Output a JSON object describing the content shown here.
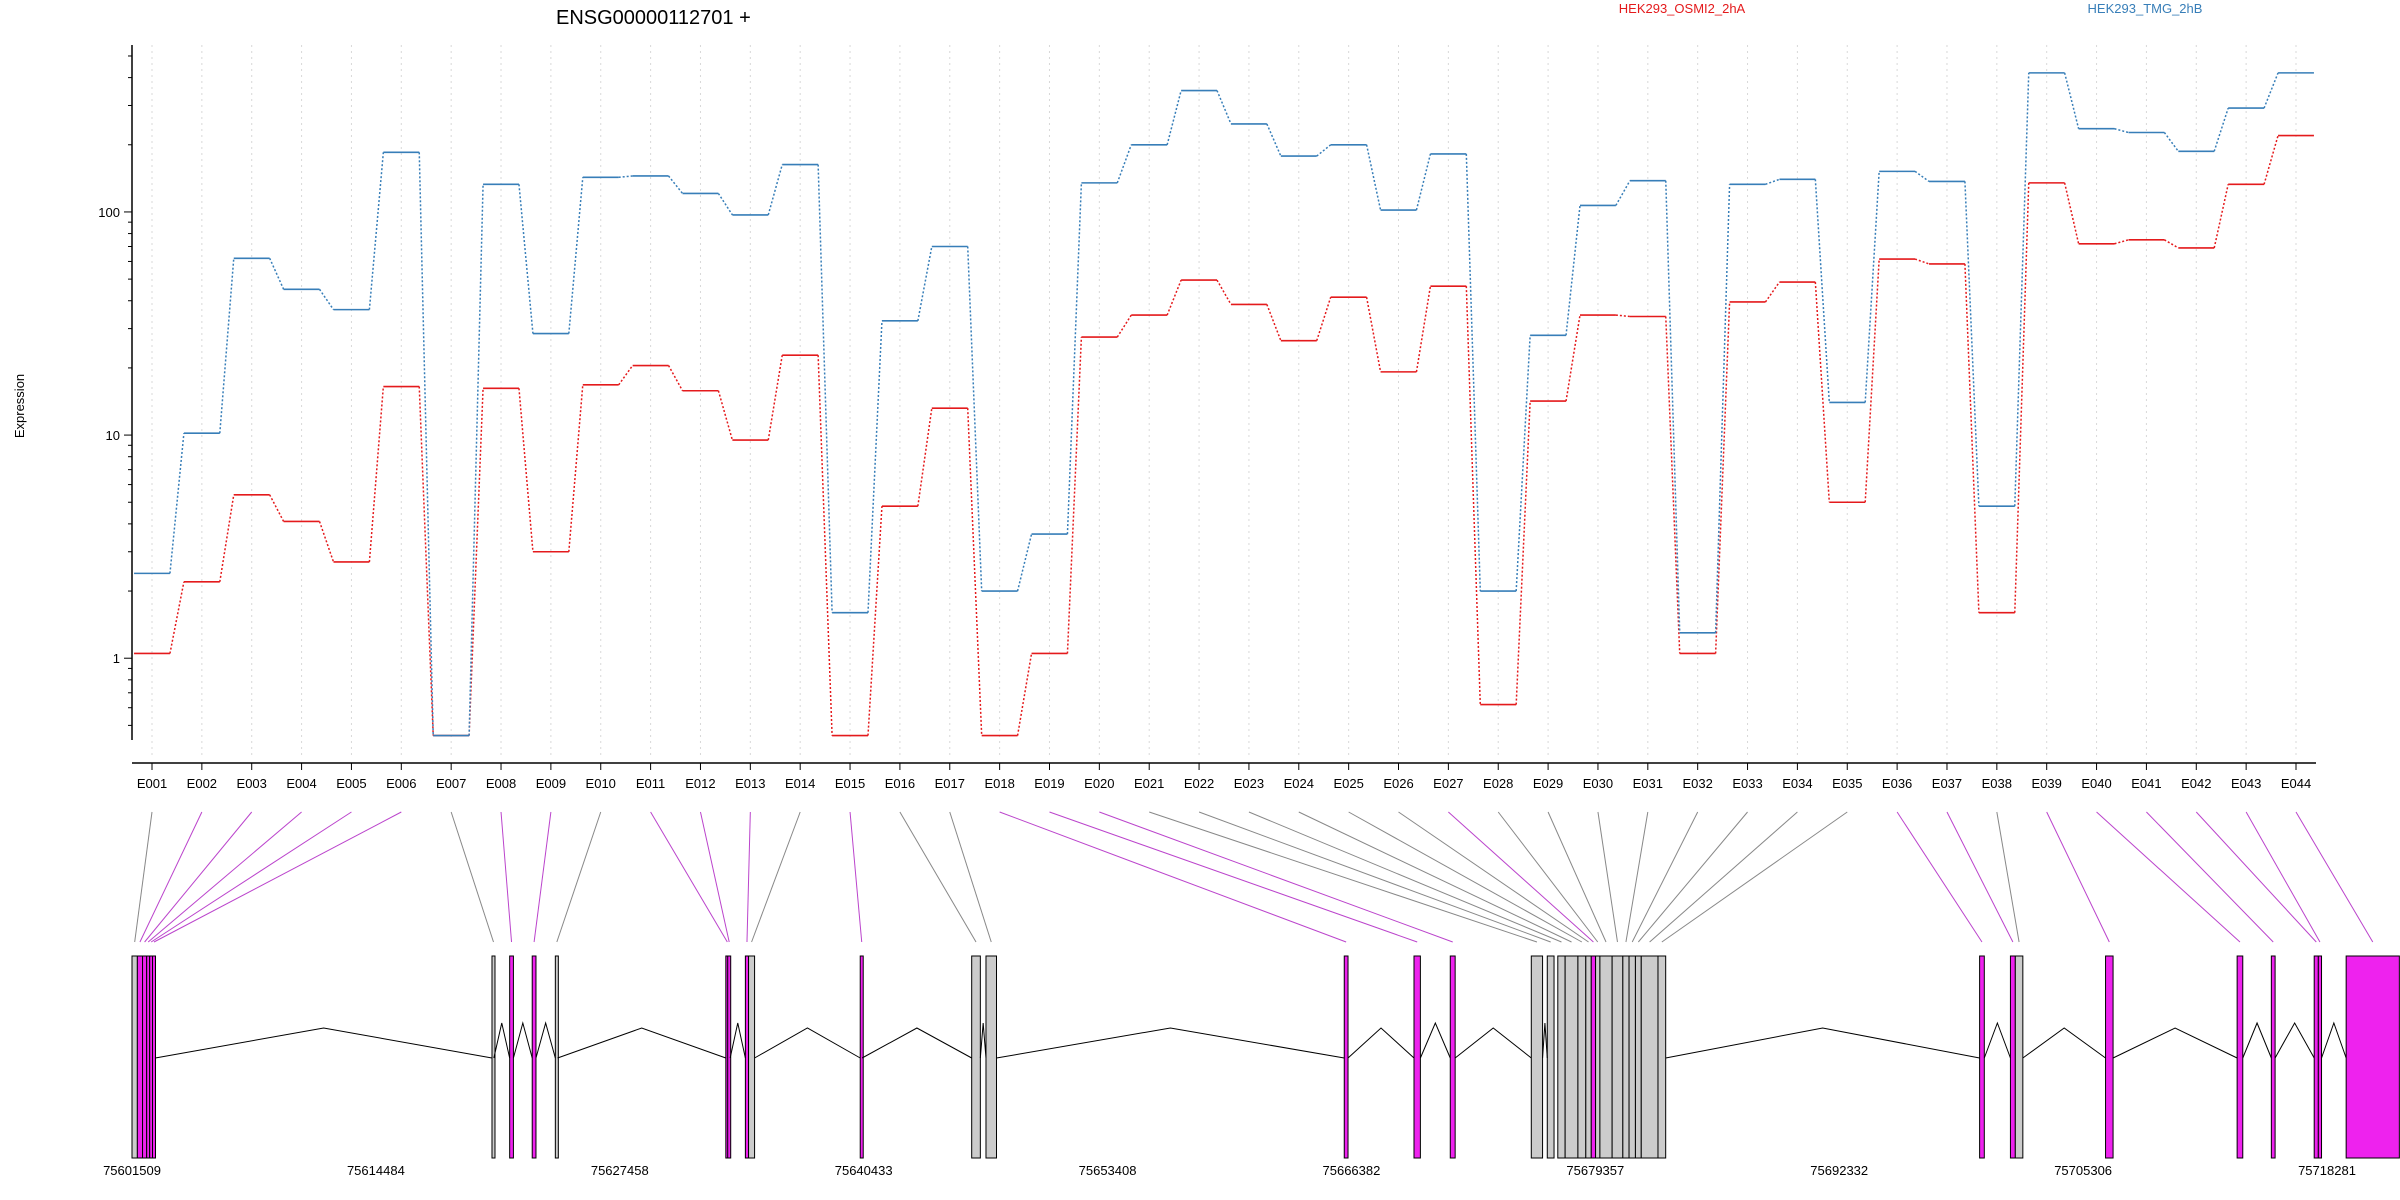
{
  "chart_data": {
    "type": "line",
    "title": "ENSG00000112701 +",
    "ylabel": "Expression",
    "yscale": "log",
    "ylim": [
      0.43,
      560
    ],
    "yticks": [
      {
        "value": 1,
        "label": "1"
      },
      {
        "value": 10,
        "label": "10"
      },
      {
        "value": 100,
        "label": "100"
      }
    ],
    "categories": [
      "E001",
      "E002",
      "E003",
      "E004",
      "E005",
      "E006",
      "E007",
      "E008",
      "E009",
      "E010",
      "E011",
      "E012",
      "E013",
      "E014",
      "E015",
      "E016",
      "E017",
      "E018",
      "E019",
      "E020",
      "E021",
      "E022",
      "E023",
      "E024",
      "E025",
      "E026",
      "E027",
      "E028",
      "E029",
      "E030",
      "E031",
      "E032",
      "E033",
      "E034",
      "E035",
      "E036",
      "E037",
      "E038",
      "E039",
      "E040",
      "E041",
      "E042",
      "E043",
      "E044"
    ],
    "series": [
      {
        "name": "HEK293_OSMI2_2hA",
        "color": "#e41a1c",
        "values": [
          1.05,
          2.2,
          5.4,
          4.1,
          2.7,
          16.5,
          0.45,
          16.2,
          3.0,
          16.8,
          20.5,
          15.8,
          9.5,
          22.8,
          0.45,
          4.8,
          13.2,
          0.45,
          1.05,
          27.5,
          34.5,
          49.5,
          38.5,
          26.5,
          41.5,
          19.2,
          46.5,
          0.62,
          14.2,
          34.5,
          34.0,
          1.05,
          39.5,
          48.5,
          5.0,
          61.5,
          58.5,
          1.6,
          135,
          72,
          75,
          69,
          133,
          220
        ]
      },
      {
        "name": "HEK293_TMG_2hB",
        "color": "#377eb8",
        "values": [
          2.4,
          10.2,
          62,
          45,
          36.5,
          185,
          0.45,
          133,
          28.5,
          143,
          145,
          121,
          97,
          163,
          1.6,
          32.5,
          70,
          2.0,
          3.6,
          135,
          200,
          350,
          248,
          178,
          200,
          102,
          182,
          2.0,
          28,
          107,
          138,
          1.3,
          133,
          140,
          14,
          152,
          137,
          4.8,
          420,
          236,
          227,
          187,
          292,
          420
        ]
      }
    ],
    "gene_model": {
      "coordinate_ticks": [
        "75601509",
        "75614484",
        "75627458",
        "75640433",
        "75653408",
        "75666382",
        "75679357",
        "75692332",
        "75705306",
        "75718281"
      ],
      "coordinate_range": [
        75601509,
        75718281
      ],
      "bar_fill": "#cccccc",
      "highlight_fill": "#ee22ee",
      "highlight_line": "#bb44cc",
      "exons": [
        {
          "id": "E001",
          "start": 75601509,
          "end": 75601794,
          "hl": false
        },
        {
          "id": "E002",
          "start": 75601794,
          "end": 75602070,
          "hl": true
        },
        {
          "id": "E003",
          "start": 75602070,
          "end": 75602290,
          "hl": true
        },
        {
          "id": "E004",
          "start": 75602290,
          "end": 75602450,
          "hl": true
        },
        {
          "id": "E005",
          "start": 75602450,
          "end": 75602600,
          "hl": true
        },
        {
          "id": "E006",
          "start": 75602600,
          "end": 75602750,
          "hl": true
        },
        {
          "id": "E007",
          "start": 75620660,
          "end": 75620760,
          "hl": false
        },
        {
          "id": "E008",
          "start": 75621600,
          "end": 75621800,
          "hl": true
        },
        {
          "id": "E009",
          "start": 75622800,
          "end": 75623000,
          "hl": true
        },
        {
          "id": "E010",
          "start": 75624030,
          "end": 75624150,
          "hl": false
        },
        {
          "id": "E011",
          "start": 75633100,
          "end": 75633200,
          "hl": true
        },
        {
          "id": "E012",
          "start": 75633200,
          "end": 75633330,
          "hl": true
        },
        {
          "id": "E013",
          "start": 75634140,
          "end": 75634310,
          "hl": true
        },
        {
          "id": "E014",
          "start": 75634310,
          "end": 75634630,
          "hl": false
        },
        {
          "id": "E015",
          "start": 75640250,
          "end": 75640350,
          "hl": true
        },
        {
          "id": "E016",
          "start": 75646180,
          "end": 75646640,
          "hl": false
        },
        {
          "id": "E017",
          "start": 75646940,
          "end": 75647500,
          "hl": false
        },
        {
          "id": "E018",
          "start": 75666000,
          "end": 75666200,
          "hl": true
        },
        {
          "id": "E019",
          "start": 75669710,
          "end": 75670050,
          "hl": true
        },
        {
          "id": "E020",
          "start": 75671640,
          "end": 75671900,
          "hl": true
        },
        {
          "id": "E021",
          "start": 75675950,
          "end": 75676550,
          "hl": false
        },
        {
          "id": "E022",
          "start": 75676800,
          "end": 75677160,
          "hl": false
        },
        {
          "id": "E023",
          "start": 75677360,
          "end": 75677750,
          "hl": false
        },
        {
          "id": "E024",
          "start": 75677750,
          "end": 75678430,
          "hl": false
        },
        {
          "id": "E025",
          "start": 75678430,
          "end": 75678850,
          "hl": false
        },
        {
          "id": "E026",
          "start": 75678850,
          "end": 75679140,
          "hl": false
        },
        {
          "id": "E027",
          "start": 75679140,
          "end": 75679370,
          "hl": true
        },
        {
          "id": "E028",
          "start": 75679370,
          "end": 75679600,
          "hl": false
        },
        {
          "id": "E029",
          "start": 75679600,
          "end": 75680250,
          "hl": false
        },
        {
          "id": "E030",
          "start": 75680250,
          "end": 75680820,
          "hl": false
        },
        {
          "id": "E031",
          "start": 75680820,
          "end": 75681150,
          "hl": false
        },
        {
          "id": "E032",
          "start": 75681150,
          "end": 75681490,
          "hl": false
        },
        {
          "id": "E033",
          "start": 75681490,
          "end": 75681800,
          "hl": false
        },
        {
          "id": "E034",
          "start": 75681800,
          "end": 75682690,
          "hl": false
        },
        {
          "id": "E035",
          "start": 75682690,
          "end": 75683100,
          "hl": false
        },
        {
          "id": "E036",
          "start": 75699800,
          "end": 75700050,
          "hl": true
        },
        {
          "id": "E037",
          "start": 75701440,
          "end": 75701700,
          "hl": true
        },
        {
          "id": "E038",
          "start": 75701700,
          "end": 75702100,
          "hl": false
        },
        {
          "id": "E039",
          "start": 75706500,
          "end": 75706900,
          "hl": true
        },
        {
          "id": "E040",
          "start": 75713500,
          "end": 75713800,
          "hl": true
        },
        {
          "id": "E041",
          "start": 75715320,
          "end": 75715520,
          "hl": true
        },
        {
          "id": "E042",
          "start": 75717600,
          "end": 75717820,
          "hl": true
        },
        {
          "id": "E043",
          "start": 75717820,
          "end": 75717990,
          "hl": true
        },
        {
          "id": "E044",
          "start": 75719300,
          "end": 75722130,
          "hl": true
        }
      ]
    }
  }
}
